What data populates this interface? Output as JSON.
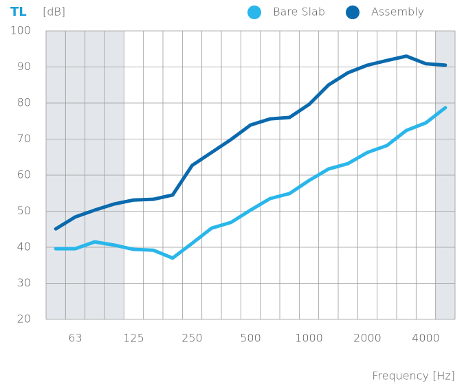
{
  "chart_data": {
    "type": "line",
    "title": "TL",
    "subtitle": "[dB]",
    "x_label": "Frequency [Hz]",
    "categories": [
      null,
      63,
      null,
      null,
      125,
      null,
      null,
      250,
      null,
      null,
      500,
      null,
      null,
      1000,
      null,
      null,
      2000,
      null,
      null,
      4000,
      null
    ],
    "series": [
      {
        "name": "Bare Slab",
        "color": "#29b6ea",
        "values": [
          39.6,
          39.6,
          41.5,
          40.6,
          39.4,
          39.2,
          37,
          41.1,
          45.3,
          46.9,
          50.3,
          53.5,
          54.9,
          58.5,
          61.7,
          63.2,
          66.3,
          68.2,
          72.4,
          74.5,
          78.7
        ]
      },
      {
        "name": "Assembly",
        "color": "#0a6aad",
        "values": [
          45.1,
          48.4,
          50.3,
          52,
          53.1,
          53.3,
          54.5,
          62.7,
          66.3,
          69.9,
          73.9,
          75.6,
          76,
          79.6,
          85,
          88.4,
          90.5,
          91.8,
          93,
          90.9,
          90.5
        ]
      }
    ],
    "ylim": [
      20,
      100
    ],
    "yticks": [
      20,
      30,
      40,
      50,
      60,
      70,
      80,
      90,
      100
    ],
    "grid": true
  }
}
